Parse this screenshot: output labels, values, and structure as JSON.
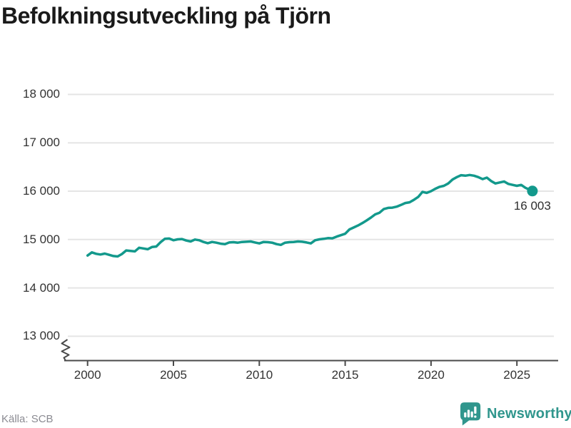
{
  "header": {
    "title": "Befolkningsutveckling på Tjörn"
  },
  "footer": {
    "source": "Källa: SCB",
    "brand": "Newsworthy"
  },
  "colors": {
    "line": "#13998c",
    "brand": "#30968d",
    "grid": "#e5e5e5",
    "axis": "#4a4a4a",
    "label": "#333333",
    "muted": "#8b8b92",
    "title": "#1a1a1a"
  },
  "chart_data": {
    "type": "line",
    "title": "Befolkningsutveckling på Tjörn",
    "xlabel": "",
    "ylabel": "",
    "x_ticks": [
      2000,
      2005,
      2010,
      2015,
      2020,
      2025
    ],
    "x_tick_labels": [
      "2000",
      "2005",
      "2010",
      "2015",
      "2020",
      "2025"
    ],
    "y_ticks": [
      18000,
      17000,
      16000,
      15000,
      14000,
      13000
    ],
    "y_tick_labels": [
      "18 000",
      "17 000",
      "16 000",
      "15 000",
      "14 000",
      "13 000"
    ],
    "y_range_shown": [
      13000,
      18000
    ],
    "x_range": [
      1998.8,
      2027.2
    ],
    "grid": "horizontal",
    "y_axis_break": true,
    "legend": "none",
    "end_label": "16 003",
    "end_point": [
      2025.9,
      16003
    ],
    "series": [
      {
        "name": "Befolkning",
        "points": [
          [
            2000.0,
            14670
          ],
          [
            2000.25,
            14735
          ],
          [
            2000.5,
            14705
          ],
          [
            2000.75,
            14690
          ],
          [
            2001.0,
            14710
          ],
          [
            2001.25,
            14685
          ],
          [
            2001.5,
            14660
          ],
          [
            2001.75,
            14650
          ],
          [
            2002.0,
            14700
          ],
          [
            2002.25,
            14775
          ],
          [
            2002.5,
            14765
          ],
          [
            2002.75,
            14755
          ],
          [
            2003.0,
            14830
          ],
          [
            2003.25,
            14815
          ],
          [
            2003.5,
            14800
          ],
          [
            2003.75,
            14845
          ],
          [
            2004.0,
            14855
          ],
          [
            2004.25,
            14945
          ],
          [
            2004.5,
            15015
          ],
          [
            2004.75,
            15020
          ],
          [
            2005.0,
            14985
          ],
          [
            2005.25,
            15005
          ],
          [
            2005.5,
            15010
          ],
          [
            2005.75,
            14980
          ],
          [
            2006.0,
            14960
          ],
          [
            2006.25,
            15000
          ],
          [
            2006.5,
            14985
          ],
          [
            2006.75,
            14950
          ],
          [
            2007.0,
            14925
          ],
          [
            2007.25,
            14950
          ],
          [
            2007.5,
            14935
          ],
          [
            2007.75,
            14915
          ],
          [
            2008.0,
            14905
          ],
          [
            2008.25,
            14940
          ],
          [
            2008.5,
            14945
          ],
          [
            2008.75,
            14935
          ],
          [
            2009.0,
            14950
          ],
          [
            2009.25,
            14955
          ],
          [
            2009.5,
            14960
          ],
          [
            2009.75,
            14940
          ],
          [
            2010.0,
            14920
          ],
          [
            2010.25,
            14950
          ],
          [
            2010.5,
            14945
          ],
          [
            2010.75,
            14935
          ],
          [
            2011.0,
            14905
          ],
          [
            2011.25,
            14890
          ],
          [
            2011.5,
            14935
          ],
          [
            2011.75,
            14945
          ],
          [
            2012.0,
            14950
          ],
          [
            2012.25,
            14960
          ],
          [
            2012.5,
            14955
          ],
          [
            2012.75,
            14940
          ],
          [
            2013.0,
            14920
          ],
          [
            2013.25,
            14985
          ],
          [
            2013.5,
            15005
          ],
          [
            2013.75,
            15015
          ],
          [
            2014.0,
            15030
          ],
          [
            2014.25,
            15025
          ],
          [
            2014.5,
            15060
          ],
          [
            2014.75,
            15090
          ],
          [
            2015.0,
            15120
          ],
          [
            2015.25,
            15210
          ],
          [
            2015.5,
            15250
          ],
          [
            2015.75,
            15290
          ],
          [
            2016.0,
            15340
          ],
          [
            2016.25,
            15395
          ],
          [
            2016.5,
            15455
          ],
          [
            2016.75,
            15520
          ],
          [
            2017.0,
            15555
          ],
          [
            2017.25,
            15630
          ],
          [
            2017.5,
            15655
          ],
          [
            2017.75,
            15660
          ],
          [
            2018.0,
            15680
          ],
          [
            2018.25,
            15715
          ],
          [
            2018.5,
            15755
          ],
          [
            2018.75,
            15770
          ],
          [
            2019.0,
            15820
          ],
          [
            2019.25,
            15880
          ],
          [
            2019.5,
            15985
          ],
          [
            2019.75,
            15965
          ],
          [
            2020.0,
            16000
          ],
          [
            2020.25,
            16050
          ],
          [
            2020.5,
            16090
          ],
          [
            2020.75,
            16110
          ],
          [
            2021.0,
            16160
          ],
          [
            2021.25,
            16240
          ],
          [
            2021.5,
            16290
          ],
          [
            2021.75,
            16330
          ],
          [
            2022.0,
            16320
          ],
          [
            2022.25,
            16335
          ],
          [
            2022.5,
            16320
          ],
          [
            2022.75,
            16290
          ],
          [
            2023.0,
            16250
          ],
          [
            2023.25,
            16280
          ],
          [
            2023.5,
            16210
          ],
          [
            2023.75,
            16160
          ],
          [
            2024.0,
            16180
          ],
          [
            2024.25,
            16200
          ],
          [
            2024.5,
            16150
          ],
          [
            2024.75,
            16130
          ],
          [
            2025.0,
            16110
          ],
          [
            2025.25,
            16130
          ],
          [
            2025.5,
            16070
          ],
          [
            2025.75,
            16030
          ],
          [
            2025.9,
            16003
          ]
        ]
      }
    ]
  }
}
